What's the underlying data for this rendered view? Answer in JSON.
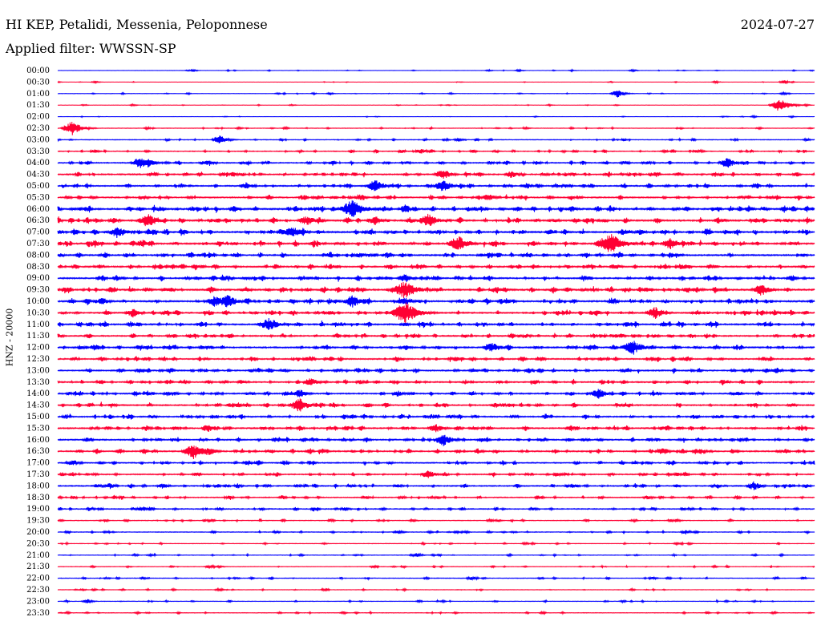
{
  "header": {
    "station": "HI KEP, Petalidi, Messenia, Peloponnese",
    "date": "2024-07-27",
    "filter": "Applied filter: WWSSN-SP"
  },
  "colors": {
    "trace_even": "#0000ff",
    "trace_odd": "#ff0033",
    "background": "#ffffff",
    "text": "#000000"
  },
  "chart_data": {
    "type": "line",
    "title": "HI KEP, Petalidi, Messenia, Peloponnese",
    "ylabel": "HNZ - 20000",
    "row_labels": [
      "00:00",
      "00:30",
      "01:00",
      "01:30",
      "02:00",
      "02:30",
      "03:00",
      "03:30",
      "04:00",
      "04:30",
      "05:00",
      "05:30",
      "06:00",
      "06:30",
      "07:00",
      "07:30",
      "08:00",
      "08:30",
      "09:00",
      "09:30",
      "10:00",
      "10:30",
      "11:00",
      "11:30",
      "12:00",
      "12:30",
      "13:00",
      "13:30",
      "14:00",
      "14:30",
      "15:00",
      "15:30",
      "16:00",
      "16:30",
      "17:00",
      "17:30",
      "18:00",
      "18:30",
      "19:00",
      "19:30",
      "20:00",
      "20:30",
      "21:00",
      "21:30",
      "22:00",
      "22:30",
      "23:00",
      "23:30"
    ],
    "series": [
      {
        "name": "00:00",
        "noise": 0.5,
        "events": [
          [
            0.18,
            1.6
          ],
          [
            0.57,
            1.3
          ],
          [
            0.61,
            1.6
          ],
          [
            0.68,
            1.2
          ],
          [
            0.76,
            1.8
          ]
        ]
      },
      {
        "name": "00:30",
        "noise": 0.4,
        "events": [
          [
            0.05,
            1.5
          ],
          [
            0.87,
            1.6
          ],
          [
            0.96,
            2.6
          ]
        ]
      },
      {
        "name": "01:00",
        "noise": 0.6,
        "events": [
          [
            0.36,
            1.6
          ],
          [
            0.52,
            1.2
          ],
          [
            0.74,
            5.0
          ],
          [
            0.96,
            2.0
          ]
        ]
      },
      {
        "name": "01:30",
        "noise": 0.4,
        "events": [
          [
            0.1,
            1.4
          ],
          [
            0.31,
            1.2
          ],
          [
            0.65,
            1.2
          ],
          [
            0.955,
            9.0
          ],
          [
            0.99,
            1.4
          ]
        ]
      },
      {
        "name": "02:00",
        "noise": 0.4,
        "events": [
          [
            0.92,
            1.4
          ],
          [
            0.97,
            1.2
          ]
        ]
      },
      {
        "name": "02:30",
        "noise": 0.8,
        "events": [
          [
            0.02,
            9.0
          ],
          [
            0.24,
            1.5
          ],
          [
            0.62,
            1.5
          ]
        ]
      },
      {
        "name": "03:00",
        "noise": 1.0,
        "events": [
          [
            0.215,
            6.0
          ],
          [
            0.53,
            2.5
          ],
          [
            0.99,
            2.0
          ]
        ]
      },
      {
        "name": "03:30",
        "noise": 1.2,
        "events": [
          [
            0.05,
            2.5
          ],
          [
            0.48,
            4.0
          ],
          [
            0.85,
            2.0
          ]
        ]
      },
      {
        "name": "04:00",
        "noise": 1.6,
        "events": [
          [
            0.11,
            8.0
          ],
          [
            0.12,
            6.0
          ],
          [
            0.75,
            3.0
          ],
          [
            0.885,
            7.0
          ]
        ]
      },
      {
        "name": "04:30",
        "noise": 1.8,
        "events": [
          [
            0.22,
            3.0
          ],
          [
            0.51,
            7.0
          ],
          [
            0.6,
            5.0
          ],
          [
            0.82,
            3.0
          ]
        ]
      },
      {
        "name": "05:00",
        "noise": 1.8,
        "events": [
          [
            0.25,
            5.0
          ],
          [
            0.42,
            8.0
          ],
          [
            0.51,
            8.0
          ],
          [
            0.62,
            4.0
          ]
        ]
      },
      {
        "name": "05:30",
        "noise": 1.8,
        "events": [
          [
            0.4,
            4.0
          ],
          [
            0.57,
            5.0
          ]
        ]
      },
      {
        "name": "06:00",
        "noise": 2.2,
        "events": [
          [
            0.39,
            12.0
          ],
          [
            0.46,
            6.0
          ],
          [
            0.68,
            4.0
          ]
        ]
      },
      {
        "name": "06:30",
        "noise": 2.2,
        "events": [
          [
            0.12,
            9.0
          ],
          [
            0.33,
            7.0
          ],
          [
            0.42,
            6.0
          ],
          [
            0.49,
            9.0
          ],
          [
            0.88,
            3.0
          ]
        ]
      },
      {
        "name": "07:00",
        "noise": 2.2,
        "events": [
          [
            0.08,
            8.0
          ],
          [
            0.31,
            8.0
          ],
          [
            0.77,
            4.0
          ]
        ]
      },
      {
        "name": "07:30",
        "noise": 2.2,
        "events": [
          [
            0.05,
            5.0
          ],
          [
            0.53,
            10.0
          ],
          [
            0.73,
            14.0
          ],
          [
            0.81,
            8.0
          ]
        ]
      },
      {
        "name": "08:00",
        "noise": 2.0,
        "events": [
          [
            0.4,
            4.0
          ],
          [
            0.56,
            3.0
          ]
        ]
      },
      {
        "name": "08:30",
        "noise": 2.0,
        "events": [
          [
            0.44,
            4.0
          ],
          [
            0.74,
            3.0
          ]
        ]
      },
      {
        "name": "09:00",
        "noise": 2.0,
        "events": [
          [
            0.25,
            3.0
          ],
          [
            0.46,
            6.0
          ],
          [
            0.97,
            4.0
          ]
        ]
      },
      {
        "name": "09:30",
        "noise": 2.2,
        "events": [
          [
            0.12,
            3.0
          ],
          [
            0.46,
            12.0
          ],
          [
            0.93,
            8.0
          ]
        ]
      },
      {
        "name": "10:00",
        "noise": 2.2,
        "events": [
          [
            0.06,
            5.0
          ],
          [
            0.21,
            8.0
          ],
          [
            0.225,
            9.0
          ],
          [
            0.39,
            8.0
          ],
          [
            0.46,
            5.0
          ]
        ]
      },
      {
        "name": "10:30",
        "noise": 2.0,
        "events": [
          [
            0.1,
            6.0
          ],
          [
            0.46,
            14.0
          ],
          [
            0.79,
            8.0
          ]
        ]
      },
      {
        "name": "11:00",
        "noise": 2.0,
        "events": [
          [
            0.28,
            9.0
          ],
          [
            0.46,
            3.0
          ]
        ]
      },
      {
        "name": "11:30",
        "noise": 1.8,
        "events": [
          [
            0.0,
            4.0
          ],
          [
            0.62,
            3.0
          ],
          [
            0.95,
            2.0
          ]
        ]
      },
      {
        "name": "12:00",
        "noise": 2.0,
        "events": [
          [
            0.11,
            4.0
          ],
          [
            0.46,
            4.0
          ],
          [
            0.575,
            7.0
          ],
          [
            0.76,
            10.0
          ]
        ]
      },
      {
        "name": "12:30",
        "noise": 1.8,
        "events": [
          [
            0.33,
            3.0
          ]
        ]
      },
      {
        "name": "13:00",
        "noise": 1.8,
        "events": [
          [
            0.11,
            4.0
          ],
          [
            0.3,
            3.0
          ],
          [
            0.55,
            3.0
          ],
          [
            0.95,
            4.0
          ]
        ]
      },
      {
        "name": "13:30",
        "noise": 1.8,
        "events": [
          [
            0.335,
            6.0
          ],
          [
            0.4,
            3.0
          ]
        ]
      },
      {
        "name": "14:00",
        "noise": 1.8,
        "events": [
          [
            0.32,
            6.0
          ],
          [
            0.45,
            4.0
          ],
          [
            0.715,
            7.0
          ],
          [
            0.9,
            3.0
          ]
        ]
      },
      {
        "name": "14:30",
        "noise": 1.8,
        "events": [
          [
            0.32,
            9.0
          ],
          [
            0.97,
            3.0
          ]
        ]
      },
      {
        "name": "15:00",
        "noise": 1.8,
        "events": [
          [
            0.23,
            3.0
          ],
          [
            0.52,
            3.0
          ]
        ]
      },
      {
        "name": "15:30",
        "noise": 1.8,
        "events": [
          [
            0.2,
            5.0
          ],
          [
            0.5,
            6.0
          ],
          [
            0.55,
            3.0
          ]
        ]
      },
      {
        "name": "16:00",
        "noise": 1.8,
        "events": [
          [
            0.51,
            8.0
          ],
          [
            0.56,
            3.0
          ]
        ]
      },
      {
        "name": "16:30",
        "noise": 1.8,
        "events": [
          [
            0.18,
            10.0
          ],
          [
            0.2,
            6.0
          ],
          [
            0.8,
            5.0
          ],
          [
            0.85,
            4.0
          ]
        ]
      },
      {
        "name": "17:00",
        "noise": 1.6,
        "events": [
          [
            0.02,
            3.0
          ],
          [
            0.44,
            2.0
          ]
        ]
      },
      {
        "name": "17:30",
        "noise": 1.6,
        "events": [
          [
            0.05,
            2.0
          ],
          [
            0.49,
            6.0
          ]
        ]
      },
      {
        "name": "18:00",
        "noise": 1.6,
        "events": [
          [
            0.07,
            4.0
          ],
          [
            0.14,
            4.0
          ],
          [
            0.45,
            3.0
          ],
          [
            0.92,
            6.0
          ]
        ]
      },
      {
        "name": "18:30",
        "noise": 1.4,
        "events": [
          [
            0.78,
            3.0
          ],
          [
            0.86,
            2.0
          ]
        ]
      },
      {
        "name": "19:00",
        "noise": 1.4,
        "events": [
          [
            0.38,
            3.0
          ]
        ]
      },
      {
        "name": "19:30",
        "noise": 1.0,
        "events": [
          [
            0.47,
            2.0
          ],
          [
            0.81,
            2.0
          ]
        ]
      },
      {
        "name": "20:00",
        "noise": 1.0,
        "events": [
          [
            0.45,
            3.0
          ],
          [
            0.83,
            3.0
          ]
        ]
      },
      {
        "name": "20:30",
        "noise": 0.8,
        "events": []
      },
      {
        "name": "21:00",
        "noise": 0.8,
        "events": [
          [
            0.475,
            3.0
          ]
        ]
      },
      {
        "name": "21:30",
        "noise": 0.8,
        "events": [
          [
            0.2,
            2.0
          ]
        ]
      },
      {
        "name": "22:00",
        "noise": 1.0,
        "events": [
          [
            0.55,
            2.0
          ]
        ]
      },
      {
        "name": "22:30",
        "noise": 0.8,
        "events": []
      },
      {
        "name": "23:00",
        "noise": 0.8,
        "events": [
          [
            0.04,
            3.0
          ]
        ]
      },
      {
        "name": "23:30",
        "noise": 0.8,
        "events": []
      }
    ]
  }
}
